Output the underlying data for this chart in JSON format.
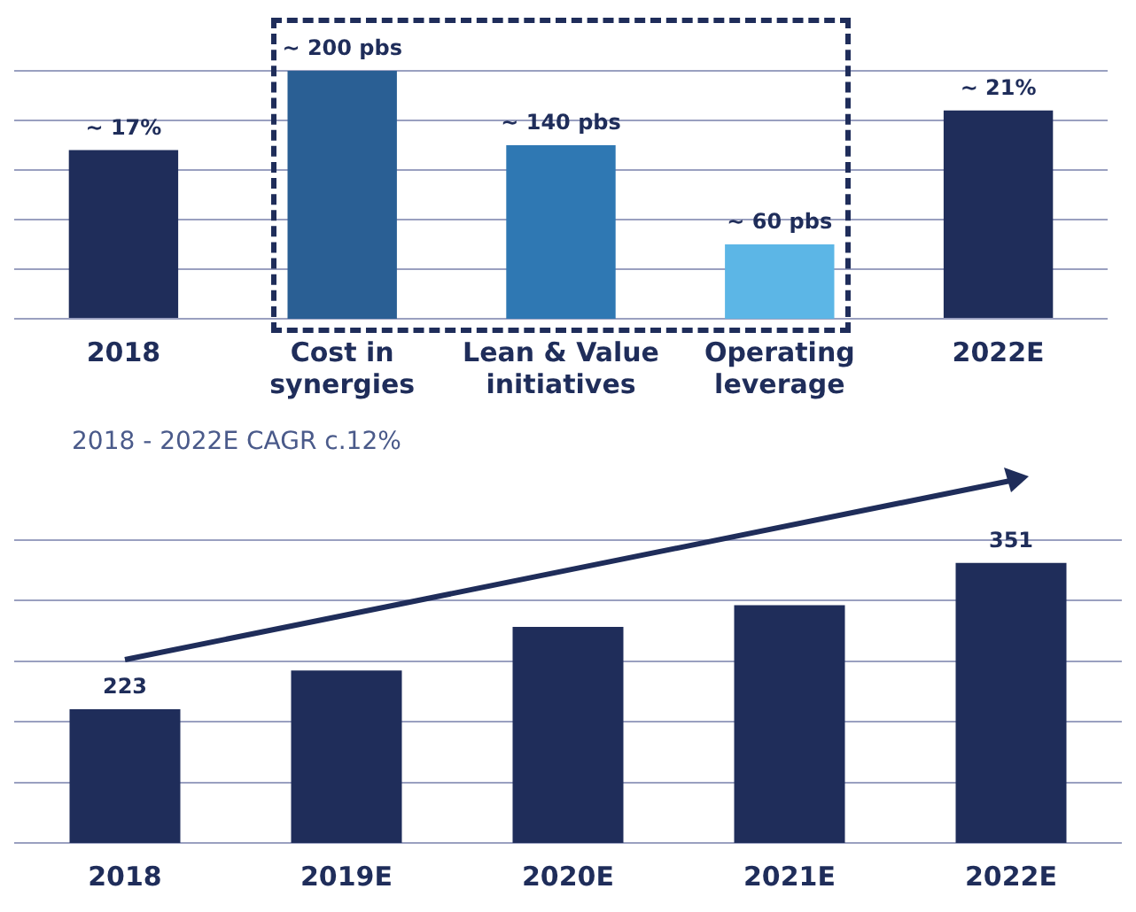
{
  "chart_data": [
    {
      "type": "bar",
      "categories": [
        "2018",
        "Cost in synergies",
        "Lean & Value initiatives",
        "Operating leverage",
        "2022E"
      ],
      "series": [
        {
          "color": "#1f2d5a",
          "values": [
            17,
            null,
            null,
            null,
            21
          ],
          "value_labels": [
            "~ 17%",
            null,
            null,
            null,
            "~ 21%"
          ]
        },
        {
          "axis": "y2",
          "colors": [
            "#2a5f94",
            "#2a5f94",
            "#2f78b3",
            "#5cb6e6",
            "#2a5f94"
          ],
          "values": [
            null,
            200,
            140,
            60,
            null
          ],
          "value_labels": [
            null,
            "~ 200 pbs",
            "~ 140 pbs",
            "~ 60 pbs",
            null
          ]
        }
      ],
      "tick_labels": "x",
      "grid": "y"
    },
    {
      "type": "bar",
      "categories": [
        "2018",
        "2019E",
        "2020E",
        "2021E",
        "2022E"
      ],
      "values": [
        223,
        257,
        295,
        314,
        351
      ],
      "color": "#1f2d5a",
      "value_labels": [
        "223",
        null,
        null,
        null,
        "351"
      ],
      "ylim": [
        106,
        371
      ],
      "yticks": [
        {
          "value": 106,
          "label": null
        },
        {
          "value": 159,
          "label": null
        },
        {
          "value": 212,
          "label": null
        },
        {
          "value": 265,
          "label": null
        },
        {
          "value": 318,
          "label": null
        },
        {
          "value": 371,
          "label": null
        }
      ],
      "tick_labels": "x",
      "grid": "y",
      "annotations": [
        "2018 - 2022E CAGR c.12%"
      ]
    }
  ]
}
